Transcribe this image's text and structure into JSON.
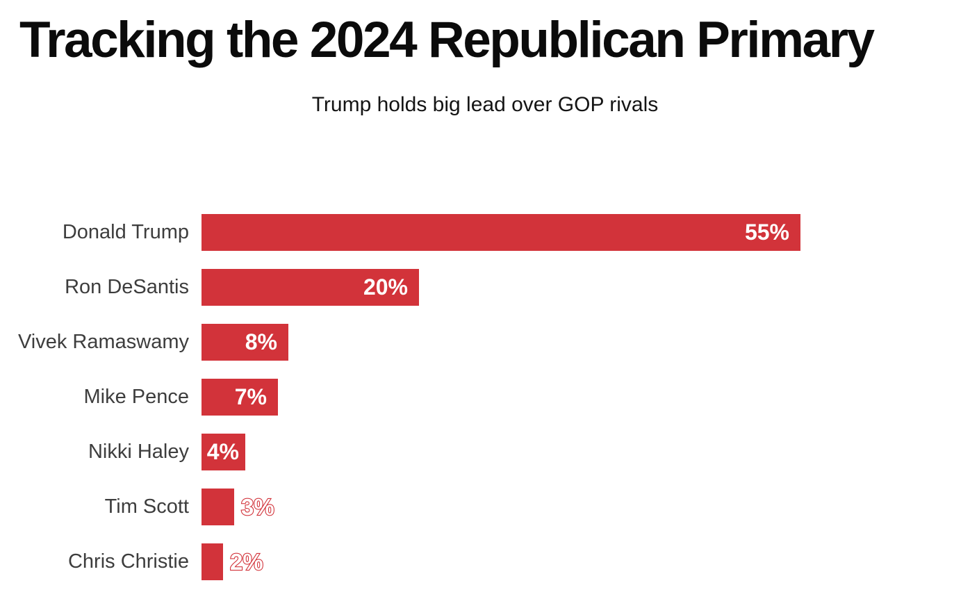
{
  "header": {
    "title": "Tracking the 2024 Republican Primary",
    "subtitle": "Trump holds big lead over GOP rivals"
  },
  "chart_data": {
    "type": "bar",
    "orientation": "horizontal",
    "title": "Tracking the 2024 Republican Primary",
    "subtitle": "Trump holds big lead over GOP rivals",
    "categories": [
      "Donald Trump",
      "Ron DeSantis",
      "Vivek Ramaswamy",
      "Mike Pence",
      "Nikki Haley",
      "Tim Scott",
      "Chris Christie"
    ],
    "values": [
      55,
      20,
      8,
      7,
      4,
      3,
      2
    ],
    "value_labels": [
      "55%",
      "20%",
      "8%",
      "7%",
      "4%",
      "3%",
      "2%"
    ],
    "unit": "%",
    "xlabel": "",
    "ylabel": "",
    "grid": false,
    "legend": false,
    "colors": {
      "bar": "#d2333a",
      "category_label": "#3d3d3d",
      "value_label_inside": "#ffffff",
      "value_label_outside_fill": "#ffffff",
      "value_label_outside_stroke": "#d2333a",
      "title": "#0b0b0b",
      "background": "#ffffff"
    }
  }
}
